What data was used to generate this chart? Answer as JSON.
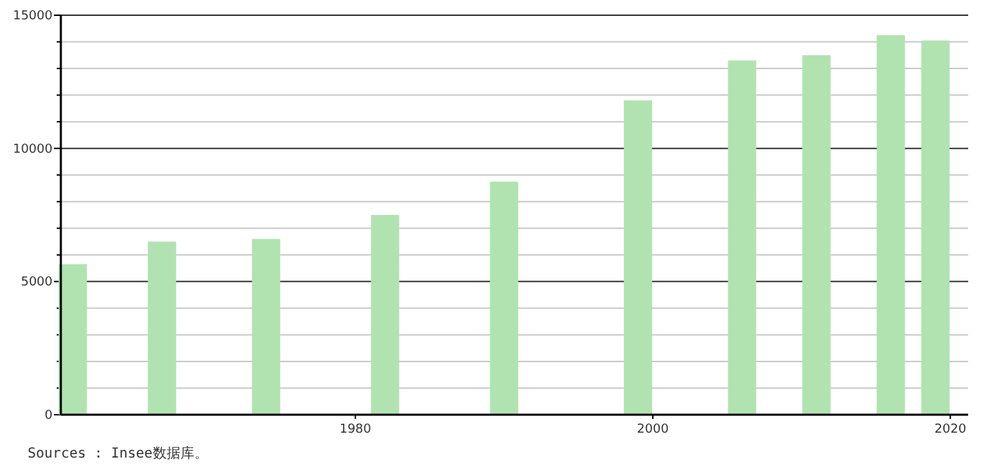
{
  "chart_data": {
    "type": "bar",
    "x": [
      1961,
      1967,
      1974,
      1982,
      1990,
      1999,
      2006,
      2011,
      2016,
      2019
    ],
    "values": [
      5650,
      6500,
      6600,
      7500,
      8750,
      11800,
      13300,
      13500,
      14250,
      14050
    ],
    "color": "#b0e3b0",
    "xlim": [
      1960.2,
      2021.2
    ],
    "xticks": [
      1980,
      2000,
      2020
    ],
    "ylim": [
      0,
      15000
    ],
    "yticks": [
      0,
      {
        "value": 1000,
        "label": null
      },
      {
        "value": 2000,
        "label": null
      },
      {
        "value": 3000,
        "label": null
      },
      {
        "value": 4000,
        "label": null
      },
      5000,
      {
        "value": 6000,
        "label": null
      },
      {
        "value": 7000,
        "label": null
      },
      {
        "value": 8000,
        "label": null
      },
      {
        "value": 9000,
        "label": null
      },
      10000,
      {
        "value": 11000,
        "label": null
      },
      {
        "value": 12000,
        "label": null
      },
      {
        "value": 13000,
        "label": null
      },
      {
        "value": 14000,
        "label": null
      },
      15000
    ],
    "grid": "y",
    "annotations": [
      "Sources : Insee数据库。"
    ]
  }
}
